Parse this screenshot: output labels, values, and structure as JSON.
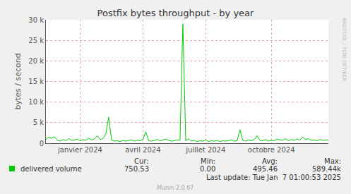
{
  "chart_data": {
    "type": "line",
    "title": "Postfix bytes throughput - by year",
    "y_label": "bytes / second",
    "categories": [
      null,
      null,
      null,
      null,
      null,
      null,
      null,
      null,
      null,
      null,
      null,
      null,
      "janvier 2024",
      null,
      null,
      null,
      null,
      null,
      null,
      null,
      null,
      null,
      null,
      null,
      null,
      null,
      null,
      null,
      null,
      null,
      null,
      null,
      null,
      null,
      "avril 2024",
      null,
      null,
      null,
      null,
      null,
      null,
      null,
      null,
      null,
      null,
      null,
      null,
      null,
      null,
      null,
      null,
      null,
      null,
      null,
      null,
      null,
      "juillet 2024",
      null,
      null,
      null,
      null,
      null,
      null,
      null,
      null,
      null,
      null,
      null,
      null,
      null,
      null,
      null,
      null,
      null,
      null,
      null,
      null,
      null,
      null,
      "octobre 2024",
      null,
      null,
      null,
      null,
      null,
      null,
      null,
      null,
      null,
      null,
      null,
      null,
      null,
      null,
      null,
      null,
      null,
      null,
      null,
      null
    ],
    "series": [
      {
        "name": "delivered volume",
        "color": "#00cc00",
        "values": [
          900,
          1500,
          1200,
          1600,
          700,
          500,
          900,
          600,
          1100,
          700,
          800,
          1000,
          600,
          900,
          700,
          1200,
          800,
          1000,
          1800,
          900,
          1100,
          2300,
          6300,
          800,
          500,
          600,
          400,
          700,
          500,
          600,
          800,
          500,
          700,
          600,
          900,
          2800,
          600,
          500,
          700,
          900,
          600,
          800,
          1000,
          700,
          500,
          600,
          800,
          700,
          29000,
          600,
          1100,
          500,
          700,
          400,
          600,
          500,
          800,
          400,
          600,
          500,
          700,
          400,
          600,
          500,
          700,
          800,
          500,
          600,
          3300,
          700,
          500,
          800,
          600,
          900,
          1800,
          700,
          600,
          900,
          500,
          700,
          600,
          1000,
          800,
          700,
          1100,
          600,
          900,
          700,
          1000,
          800,
          1500,
          900,
          1100,
          700,
          800,
          600,
          900,
          700,
          800,
          750
        ]
      }
    ],
    "ylim": [
      0,
      30000
    ],
    "yticks": [
      0,
      {
        "value": 5000,
        "label": "5 k"
      },
      {
        "value": 10000,
        "label": "10 k"
      },
      {
        "value": 15000,
        "label": "15 k"
      },
      {
        "value": 20000,
        "label": "20 k"
      },
      {
        "value": 25000,
        "label": "25 k"
      },
      {
        "value": 30000,
        "label": "30 k"
      }
    ],
    "grid": true,
    "legend_stats": [
      {
        "label": "Cur:",
        "value": "750.53"
      },
      {
        "label": "Min:",
        "value": "0.00"
      },
      {
        "label": "Avg:",
        "value": "495.46"
      },
      {
        "label": "Max:",
        "value": "589.44k"
      }
    ],
    "last_update": "Last update: Tue Jan  7 01:00:53 2025",
    "footer": "Munin 2.0.67",
    "side_text": "RRDTOOL / TOBI OETIKER"
  }
}
